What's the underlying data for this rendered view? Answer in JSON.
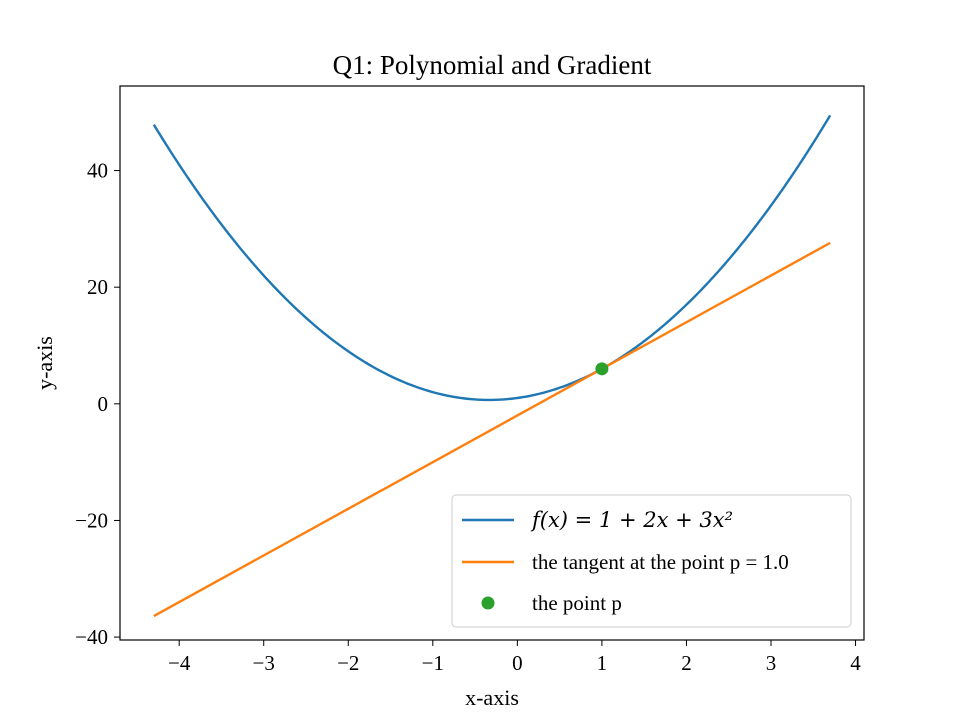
{
  "chart_data": {
    "type": "line",
    "title": "Q1: Polynomial and Gradient",
    "xlabel": "x-axis",
    "ylabel": "y-axis",
    "xlim": [
      -4.7,
      4.1
    ],
    "ylim": [
      -40.5,
      54.5
    ],
    "xticks": [
      -4,
      -3,
      -2,
      -1,
      0,
      1,
      2,
      3,
      4
    ],
    "xtick_labels": [
      "−4",
      "−3",
      "−2",
      "−1",
      "0",
      "1",
      "2",
      "3",
      "4"
    ],
    "yticks": [
      -40,
      -20,
      0,
      20,
      40
    ],
    "ytick_labels": [
      "−40",
      "−20",
      "0",
      "20",
      "40"
    ],
    "grid": false,
    "legend_position": "bottom-right",
    "series": [
      {
        "name": "f(x) = 1 + 2x + 3x²",
        "kind": "curve",
        "function": "1 + 2x + 3x^2",
        "coefficients": [
          1,
          2,
          3
        ],
        "x_range": [
          -4.3,
          3.7
        ],
        "color": "#1f77b4"
      },
      {
        "name": "the tangent at the point p = 1.0",
        "kind": "line",
        "slope": 8,
        "intercept": -2,
        "x_range": [
          -4.3,
          3.7
        ],
        "color": "#ff7f0e"
      },
      {
        "name": "the point p",
        "kind": "point",
        "x": [
          1.0
        ],
        "y": [
          6.0
        ],
        "color": "#2ca02c"
      }
    ]
  }
}
